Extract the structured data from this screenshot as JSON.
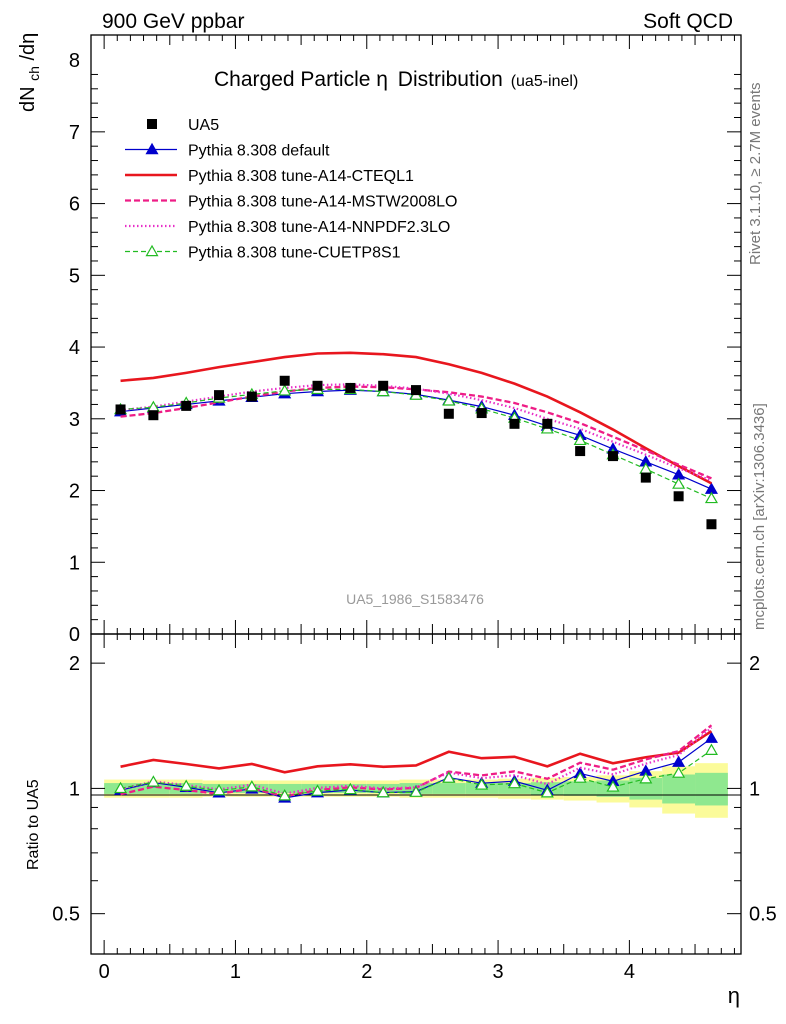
{
  "header": {
    "left": "900 GeV ppbar",
    "right": "Soft QCD"
  },
  "side_text": {
    "rivet": "Rivet 3.1.10, ≥ 2.7M events",
    "mcplots": "mcplots.cern.ch [arXiv:1306.3436]"
  },
  "chart_data": {
    "type": "scatter",
    "title": "Charged Particle",
    "title_symbol": "η",
    "title_rest": "Distribution",
    "title_sub": "(ua5-inel)",
    "watermark": "UA5_1986_S1583476",
    "xlabel": "η",
    "ylabel_main": "dN",
    "ylabel_sub": "ch",
    "ylabel_tail": "/dη",
    "ylabel_ratio": "Ratio to UA5",
    "xlim": [
      -0.1,
      4.85
    ],
    "ylim_main": [
      0,
      8.35
    ],
    "ylim_ratio": [
      0.4,
      2.35
    ],
    "ratio_scale": "log",
    "x_ticks": [
      "0",
      "1",
      "2",
      "3",
      "4"
    ],
    "y_ticks_main": [
      "0",
      "1",
      "2",
      "3",
      "4",
      "5",
      "6",
      "7",
      "8"
    ],
    "y_ticks_ratio": [
      "0.5",
      "1",
      "2"
    ],
    "x": [
      0.125,
      0.375,
      0.625,
      0.875,
      1.125,
      1.375,
      1.625,
      1.875,
      2.125,
      2.375,
      2.625,
      2.875,
      3.125,
      3.375,
      3.625,
      3.875,
      4.125,
      4.375,
      4.625
    ],
    "data": {
      "name": "UA5",
      "values": [
        3.13,
        3.05,
        3.18,
        3.33,
        3.31,
        3.53,
        3.46,
        3.43,
        3.46,
        3.4,
        3.07,
        3.08,
        2.93,
        2.93,
        2.55,
        2.48,
        2.18,
        1.92,
        1.53
      ],
      "band_green": [
        0.03,
        0.03,
        0.03,
        0.025,
        0.025,
        0.025,
        0.025,
        0.025,
        0.025,
        0.03,
        0.03,
        0.03,
        0.03,
        0.035,
        0.04,
        0.045,
        0.06,
        0.08,
        0.09
      ],
      "band_yellow": [
        0.05,
        0.05,
        0.05,
        0.045,
        0.045,
        0.045,
        0.045,
        0.045,
        0.045,
        0.05,
        0.05,
        0.05,
        0.055,
        0.06,
        0.065,
        0.075,
        0.1,
        0.13,
        0.15
      ]
    },
    "series": [
      {
        "name": "Pythia 8.308 default",
        "color": "#0000cc",
        "dash": "",
        "width": 1.2,
        "marker": "triangle-filled",
        "values": [
          3.1,
          3.15,
          3.2,
          3.25,
          3.3,
          3.35,
          3.38,
          3.4,
          3.38,
          3.34,
          3.26,
          3.17,
          3.05,
          2.9,
          2.77,
          2.58,
          2.4,
          2.22,
          2.02
        ]
      },
      {
        "name": "Pythia 8.308 tune-A14-CTEQL1",
        "color": "#e8161e",
        "dash": "",
        "width": 2.6,
        "marker": "",
        "values": [
          3.53,
          3.57,
          3.64,
          3.72,
          3.79,
          3.86,
          3.91,
          3.92,
          3.9,
          3.86,
          3.76,
          3.64,
          3.49,
          3.31,
          3.09,
          2.85,
          2.59,
          2.34,
          2.1
        ]
      },
      {
        "name": "Pythia 8.308 tune-A14-MSTW2008LO",
        "color": "#ee1d86",
        "dash": "6,3",
        "width": 2.3,
        "marker": "",
        "values": [
          3.03,
          3.08,
          3.15,
          3.23,
          3.31,
          3.38,
          3.43,
          3.45,
          3.44,
          3.41,
          3.37,
          3.31,
          3.22,
          3.09,
          2.94,
          2.75,
          2.56,
          2.36,
          2.17
        ]
      },
      {
        "name": "Pythia 8.308 tune-A14-NNPDF2.3LO",
        "color": "#e82fc8",
        "dash": "1.5,2.5",
        "width": 2.2,
        "marker": "",
        "values": [
          3.12,
          3.17,
          3.24,
          3.31,
          3.38,
          3.43,
          3.47,
          3.48,
          3.46,
          3.42,
          3.35,
          3.26,
          3.15,
          3.0,
          2.86,
          2.68,
          2.5,
          2.31,
          2.14
        ]
      },
      {
        "name": "Pythia 8.308 tune-CUETP8S1",
        "color": "#22bb22",
        "dash": "5,3",
        "width": 1.2,
        "marker": "triangle-open",
        "values": [
          3.13,
          3.16,
          3.22,
          3.29,
          3.34,
          3.39,
          3.41,
          3.41,
          3.38,
          3.33,
          3.25,
          3.14,
          3.01,
          2.86,
          2.7,
          2.5,
          2.3,
          2.09,
          1.89
        ]
      }
    ]
  }
}
